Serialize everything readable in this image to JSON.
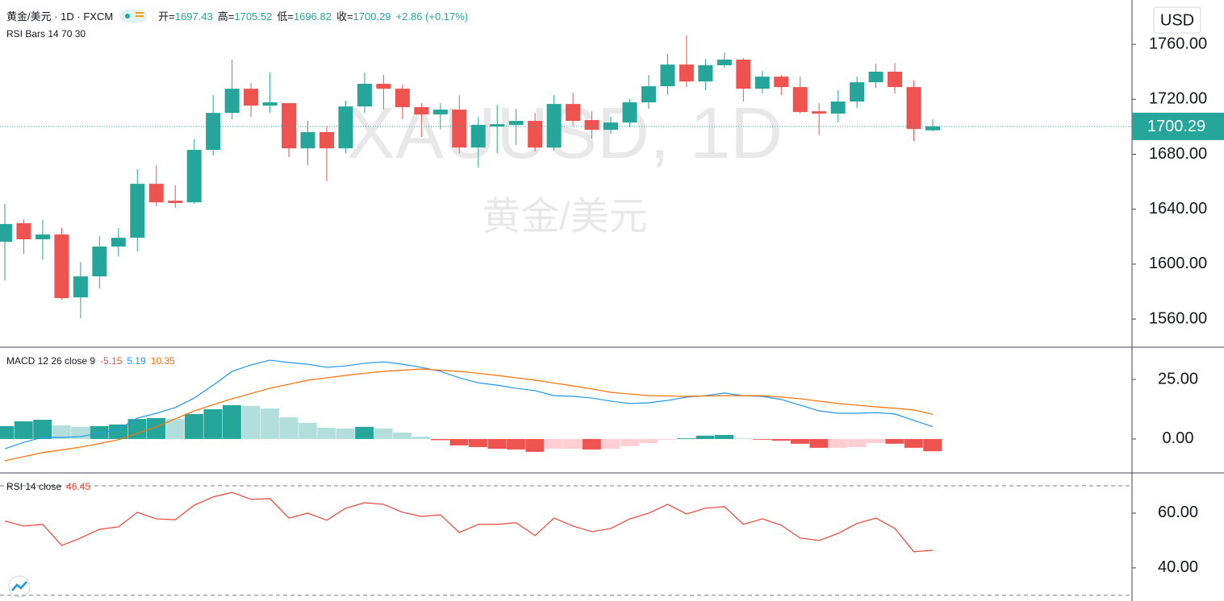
{
  "header": {
    "title": "黄金/美元 · 1D · FXCM",
    "ohlc": [
      {
        "label": "开=",
        "value": 1697.43
      },
      {
        "label": "高=",
        "value": 1705.52
      },
      {
        "label": "低=",
        "value": 1696.82
      },
      {
        "label": "收=",
        "value": 1700.29
      }
    ],
    "change": "+2.86 (+0.17%)"
  },
  "currency": "USD",
  "watermark": {
    "symbol": "XAUUSD, 1D",
    "name": "黄金/美元"
  },
  "chart_data": [
    {
      "type": "candlestick",
      "indicator": "RSI Bars 14 70 30",
      "up_color": "#26a69a",
      "down_color": "#ef5350",
      "open": [
        1616.3,
        1629.8,
        1618.1,
        1621.6,
        1575.8,
        1591.1,
        1612.8,
        1619.2,
        1658.5,
        1646.2,
        1645.0,
        1683.2,
        1710.1,
        1727.7,
        1715.4,
        1717.2,
        1684.3,
        1696.1,
        1684.3,
        1714.8,
        1731.3,
        1727.7,
        1714.3,
        1709.0,
        1712.5,
        1684.9,
        1700.2,
        1701.4,
        1704.3,
        1684.9,
        1716.6,
        1704.9,
        1697.8,
        1703.1,
        1717.8,
        1729.5,
        1745.3,
        1733.0,
        1744.8,
        1748.9,
        1727.7,
        1736.5,
        1728.9,
        1711.3,
        1709.6,
        1718.4,
        1732.4,
        1740.1,
        1728.9,
        1697.43
      ],
      "high": [
        1643.9,
        1632.7,
        1632.1,
        1626.3,
        1601.6,
        1620.4,
        1626.3,
        1669.1,
        1672.0,
        1657.4,
        1690.8,
        1723.0,
        1748.9,
        1731.8,
        1739.5,
        1717.2,
        1704.3,
        1700.2,
        1719.0,
        1739.5,
        1737.7,
        1730.7,
        1717.2,
        1717.2,
        1723.0,
        1707.2,
        1716.0,
        1713.1,
        1710.1,
        1723.0,
        1724.8,
        1711.3,
        1707.2,
        1720.1,
        1737.7,
        1753.0,
        1766.5,
        1749.4,
        1754.1,
        1750.0,
        1740.6,
        1737.7,
        1736.5,
        1717.2,
        1726.6,
        1736.5,
        1745.9,
        1746.5,
        1733.6,
        1705.52
      ],
      "low": [
        1588.2,
        1607.5,
        1603.4,
        1574.1,
        1560.6,
        1582.3,
        1605.7,
        1609.3,
        1642.1,
        1641.0,
        1643.9,
        1679.1,
        1705.5,
        1707.2,
        1710.1,
        1677.9,
        1672.0,
        1660.3,
        1680.8,
        1710.1,
        1712.5,
        1705.5,
        1692.6,
        1698.4,
        1680.8,
        1670.3,
        1680.8,
        1686.7,
        1682.0,
        1682.6,
        1700.8,
        1691.4,
        1694.9,
        1699.6,
        1713.1,
        1723.0,
        1728.9,
        1726.6,
        1743.0,
        1718.4,
        1724.2,
        1723.0,
        1709.6,
        1693.7,
        1703.1,
        1713.7,
        1728.3,
        1724.2,
        1689.6,
        1696.82
      ],
      "close": [
        1629.2,
        1618.1,
        1621.6,
        1575.3,
        1591.1,
        1612.8,
        1619.2,
        1658.5,
        1645.0,
        1644.5,
        1683.2,
        1710.1,
        1727.7,
        1715.4,
        1717.8,
        1684.3,
        1696.1,
        1684.3,
        1714.8,
        1731.3,
        1727.7,
        1714.3,
        1709.0,
        1712.5,
        1684.9,
        1701.4,
        1701.9,
        1704.3,
        1684.9,
        1716.6,
        1704.3,
        1697.8,
        1703.1,
        1717.8,
        1729.5,
        1745.3,
        1733.0,
        1744.8,
        1748.9,
        1727.7,
        1736.5,
        1728.9,
        1710.7,
        1709.6,
        1718.4,
        1732.4,
        1740.1,
        1728.9,
        1698.4,
        1700.29
      ],
      "last_price_color": "#26a69a",
      "ylim": [
        1540.1,
        1792.3
      ],
      "yticks": [
        {
          "value": 1560,
          "label": "1560.00"
        },
        {
          "value": 1600,
          "label": "1600.00"
        },
        {
          "value": 1640,
          "label": "1640.00"
        },
        {
          "value": 1680,
          "label": "1680.00"
        },
        {
          "value": 1720,
          "label": "1720.00"
        },
        {
          "value": 1760,
          "label": "1760.00"
        }
      ]
    },
    {
      "type": "macd",
      "indicator": "MACD 12 26 close 9",
      "histogram": {
        "values": [
          5.4,
          7.4,
          8.1,
          5.7,
          5.1,
          5.4,
          6.1,
          8.4,
          8.8,
          8.4,
          10.5,
          12.5,
          14.2,
          13.9,
          12.8,
          9.1,
          6.8,
          4.7,
          4.4,
          5.1,
          4.4,
          2.7,
          1.0,
          -0.5,
          -2.7,
          -3.4,
          -4.1,
          -4.4,
          -5.4,
          -4.1,
          -4.1,
          -4.4,
          -4.1,
          -3.0,
          -1.7,
          -0.3,
          0.3,
          1.4,
          1.7,
          0.3,
          -0.3,
          -0.7,
          -2.0,
          -3.7,
          -3.7,
          -3.4,
          -1.7,
          -2.0,
          -3.7,
          -5.15
        ],
        "colors": {
          "up_rising": "#26a69a",
          "up_falling": "#b2dfdb",
          "down_falling": "#ef5350",
          "down_rising": "#ffcdd2"
        },
        "legend_color": "#ef5350"
      },
      "series": [
        {
          "color": "#2196f3",
          "values": [
            -4.1,
            -1.4,
            0.7,
            0.7,
            1.0,
            2.4,
            4.1,
            8.8,
            10.8,
            13.2,
            17.2,
            22.6,
            28.4,
            31.1,
            33.1,
            32.1,
            31.4,
            30.1,
            30.7,
            31.8,
            32.4,
            31.4,
            30.1,
            28.4,
            25.7,
            23.6,
            22.6,
            21.3,
            20.3,
            18.2,
            17.9,
            17.2,
            15.9,
            14.9,
            15.2,
            16.2,
            17.6,
            18.2,
            19.3,
            18.2,
            17.9,
            16.6,
            14.2,
            11.8,
            10.8,
            10.8,
            11.1,
            10.5,
            7.8,
            5.19
          ]
        },
        {
          "color": "#ff6d00",
          "values": [
            -9.1,
            -7.4,
            -5.7,
            -4.6,
            -3.4,
            -1.9,
            -0.3,
            2.4,
            5.1,
            8.5,
            11.8,
            14.4,
            16.9,
            19.1,
            21.3,
            23.0,
            24.7,
            25.7,
            26.7,
            27.6,
            28.4,
            28.9,
            29.4,
            28.9,
            28.4,
            27.6,
            26.7,
            25.7,
            24.7,
            23.5,
            22.3,
            21.0,
            19.6,
            18.9,
            18.2,
            18.1,
            17.9,
            18.1,
            18.2,
            18.2,
            18.2,
            17.6,
            16.9,
            15.9,
            14.9,
            14.2,
            13.5,
            12.9,
            12.2,
            10.35
          ]
        }
      ],
      "ylim": [
        -13.9,
        38.2
      ],
      "yticks": [
        {
          "value": 0,
          "label": "0.00"
        },
        {
          "value": 25,
          "label": "25.00"
        }
      ]
    },
    {
      "type": "line",
      "indicator": "RSI 14 close",
      "series": [
        {
          "color": "#f44336",
          "values": [
            57.1,
            55.3,
            55.9,
            48.2,
            50.9,
            54.1,
            55.0,
            60.3,
            57.9,
            57.6,
            62.9,
            65.9,
            67.6,
            65.0,
            65.3,
            58.2,
            60.0,
            57.4,
            61.8,
            63.8,
            63.2,
            60.3,
            58.8,
            59.4,
            52.9,
            55.9,
            55.9,
            56.5,
            51.8,
            58.2,
            55.3,
            53.2,
            54.4,
            57.9,
            60.0,
            63.2,
            59.7,
            61.8,
            62.4,
            55.9,
            57.9,
            55.6,
            50.9,
            50.0,
            52.6,
            56.2,
            58.2,
            54.4,
            45.9,
            46.45
          ]
        }
      ],
      "bands": [
        70,
        30
      ],
      "ylim": [
        27.9,
        74.4
      ],
      "yticks": [
        {
          "value": 40,
          "label": "40.00"
        },
        {
          "value": 60,
          "label": "60.00"
        }
      ]
    }
  ]
}
